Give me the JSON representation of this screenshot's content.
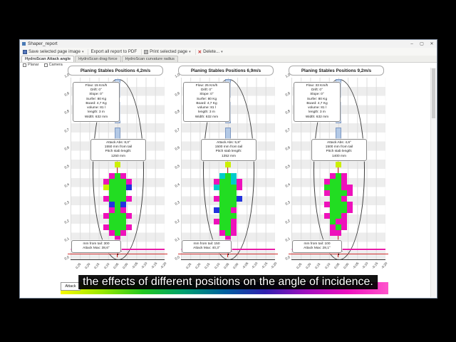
{
  "window": {
    "title": "Shaper_report",
    "controls": {
      "minimize": "–",
      "maximize": "▢",
      "close": "✕"
    }
  },
  "toolbar": {
    "items": [
      {
        "icon": "save-icon",
        "label": "Save selected page image",
        "dropdown": "▾"
      },
      {
        "icon": "none",
        "label": "Export all report to PDF",
        "dropdown": ""
      },
      {
        "icon": "print-icon",
        "label": "Print selected page",
        "dropdown": "▾"
      },
      {
        "icon": "delete-icon",
        "label": "Delete...",
        "dropdown": "▾"
      }
    ],
    "delete_glyph": "✕"
  },
  "tabs": [
    {
      "label": "HydroScan Attack angle",
      "active": true
    },
    {
      "label": "HydroScan drag force",
      "active": false
    },
    {
      "label": "HydroScan curvature radius",
      "active": false
    }
  ],
  "options": [
    {
      "label": "Planar",
      "checked": false
    },
    {
      "label": "Camera",
      "checked": false
    }
  ],
  "axes": {
    "y_ticks": [
      "1,0",
      "0,9",
      "0,8",
      "0,7",
      "0,6",
      "0,5",
      "0,4",
      "0,3",
      "0,2",
      "0,1",
      "0,0"
    ],
    "x_ticks": [
      "0,25",
      "0,20",
      "0,15",
      "0,10",
      "0,05",
      "0,00",
      "-0,05",
      "-0,10",
      "-0,15",
      "-0,20"
    ]
  },
  "palette": {
    "Y": "#ccf000",
    "G": "#22dd22",
    "C": "#00cccc",
    "B": "#2233dd",
    "M": "#ee11bb",
    "P": "#ff66cc"
  },
  "legend": {
    "label": "Attack",
    "gradient": [
      "#f8f800",
      "#9ae800",
      "#22c822",
      "#00a070",
      "#0060a0",
      "#3020b0",
      "#a010c0",
      "#ee10c0",
      "#ff55cc"
    ]
  },
  "subtitle": "the effects of different positions on the angle of incidence.",
  "charts": [
    {
      "title": "Planing Stables Positions 4,2m/s",
      "info_lines": [
        "Flow: 15 Km/h",
        "Drift: 0°",
        "Slope: 0°",
        "Surfer: 80 Kg",
        "Board: 4,7 Kg",
        "volume: 81 l",
        "length: 3 m",
        "Width: 632 mm"
      ],
      "attack_lines": [
        "Attack Abs: 8,0°",
        "1550 mm from tail",
        "Pitch stab length:",
        "1250 mm"
      ],
      "tail_lines": [
        "mm from tail: 300",
        "Attack Max: 38,6°"
      ],
      "grid": [
        "...Y...",
        ".......",
        "..MGM..",
        ".MGGGM.",
        ".YGGGB.",
        "..GGG..",
        ".MGGGM.",
        "..BGB..",
        "..MGM..",
        ".MGGGM.",
        "..GGG..",
        ".MGGGM.",
        "..MGM..",
        "...M..."
      ]
    },
    {
      "title": "Planing Stables Positions 6,9m/s",
      "info_lines": [
        "Flow: 25 Km/h",
        "Drift: 0°",
        "Slope: 0°",
        "Surfer: 80 Kg",
        "Board: 4,7 Kg",
        "volume: 81 l",
        "length: 3 m",
        "Width: 632 mm"
      ],
      "attack_lines": [
        "Attack Abs: 5,8°",
        "1500 mm from tail",
        "Pitch stab length:",
        "1352 mm"
      ],
      "tail_lines": [
        "mm from tail: 150",
        "Attack Max: 40,3°"
      ],
      "grid": [
        "...Y...",
        ".......",
        "..CGC..",
        ".MGGCM.",
        ".CGGGM.",
        "..GGG..",
        ".MGGGB.",
        "..GGG..",
        ".BGGM..",
        "..GGG..",
        ".MGGM..",
        "..GGM..",
        "..MGM..",
        "...M..."
      ]
    },
    {
      "title": "Planing Stables Positions 9,2m/s",
      "info_lines": [
        "Flow: 33 Km/h",
        "Drift: 0°",
        "Slope: 0°",
        "Surfer: 80 Kg",
        "Board: 4,7 Kg",
        "volume: 81 l",
        "length: 3 m",
        "Width: 632 mm"
      ],
      "attack_lines": [
        "Attack Abs: 4,6°",
        "1500 mm from tail",
        "Pitch stab length:",
        "1400 mm"
      ],
      "tail_lines": [
        "mm from tail: 100",
        "Attack Max: 28,1°"
      ],
      "grid": [
        "...Y...",
        ".......",
        "..MGM..",
        ".MGGM..",
        ".GGGMM.",
        ".MGGGM.",
        "..GGM..",
        ".MGGGM.",
        "..GGGM.",
        ".MGGM..",
        "..GMM..",
        "..MGM..",
        "..MM...",
        "......."
      ]
    }
  ],
  "chart_data": [
    {
      "type": "heatmap",
      "title": "Planing Stables Positions 4,2m/s",
      "xlabel": "",
      "ylabel": "",
      "x_ticks": [
        "0,25",
        "0,20",
        "0,15",
        "0,10",
        "0,05",
        "0,00",
        "-0,05",
        "-0,10",
        "-0,15",
        "-0,20"
      ],
      "y_ticks": [
        "1,0",
        "0,9",
        "0,8",
        "0,7",
        "0,6",
        "0,5",
        "0,4",
        "0,3",
        "0,2",
        "0,1",
        "0,0"
      ],
      "legend": "Attack (angle color scale, yellow-green = stable, magenta = limit)",
      "params": {
        "flow_kmh": 15,
        "drift_deg": 0,
        "slope_deg": 0,
        "surfer_kg": 80,
        "board_kg": 4.7,
        "volume_l": 81,
        "length_m": 3,
        "width_mm": 632
      },
      "attack_abs_deg": 8.0,
      "attack_abs_mm_from_tail": 1550,
      "pitch_stab_length_mm": 1250,
      "max_point": {
        "mm_from_tail": 300,
        "attack_max_deg": 38.6
      }
    },
    {
      "type": "heatmap",
      "title": "Planing Stables Positions 6,9m/s",
      "xlabel": "",
      "ylabel": "",
      "x_ticks": [
        "0,25",
        "0,20",
        "0,15",
        "0,10",
        "0,05",
        "0,00",
        "-0,05",
        "-0,10",
        "-0,15",
        "-0,20"
      ],
      "y_ticks": [
        "1,0",
        "0,9",
        "0,8",
        "0,7",
        "0,6",
        "0,5",
        "0,4",
        "0,3",
        "0,2",
        "0,1",
        "0,0"
      ],
      "legend": "Attack (angle color scale)",
      "params": {
        "flow_kmh": 25,
        "drift_deg": 0,
        "slope_deg": 0,
        "surfer_kg": 80,
        "board_kg": 4.7,
        "volume_l": 81,
        "length_m": 3,
        "width_mm": 632
      },
      "attack_abs_deg": 5.8,
      "attack_abs_mm_from_tail": 1500,
      "pitch_stab_length_mm": 1352,
      "max_point": {
        "mm_from_tail": 150,
        "attack_max_deg": 40.3
      }
    },
    {
      "type": "heatmap",
      "title": "Planing Stables Positions 9,2m/s",
      "xlabel": "",
      "ylabel": "",
      "x_ticks": [
        "0,25",
        "0,20",
        "0,15",
        "0,10",
        "0,05",
        "0,00",
        "-0,05",
        "-0,10",
        "-0,15",
        "-0,20"
      ],
      "y_ticks": [
        "1,0",
        "0,9",
        "0,8",
        "0,7",
        "0,6",
        "0,5",
        "0,4",
        "0,3",
        "0,2",
        "0,1",
        "0,0"
      ],
      "legend": "Attack (angle color scale)",
      "params": {
        "flow_kmh": 33,
        "drift_deg": 0,
        "slope_deg": 0,
        "surfer_kg": 80,
        "board_kg": 4.7,
        "volume_l": 81,
        "length_m": 3,
        "width_mm": 632
      },
      "attack_abs_deg": 4.6,
      "attack_abs_mm_from_tail": 1500,
      "pitch_stab_length_mm": 1400,
      "max_point": {
        "mm_from_tail": 100,
        "attack_max_deg": 28.1
      }
    }
  ]
}
